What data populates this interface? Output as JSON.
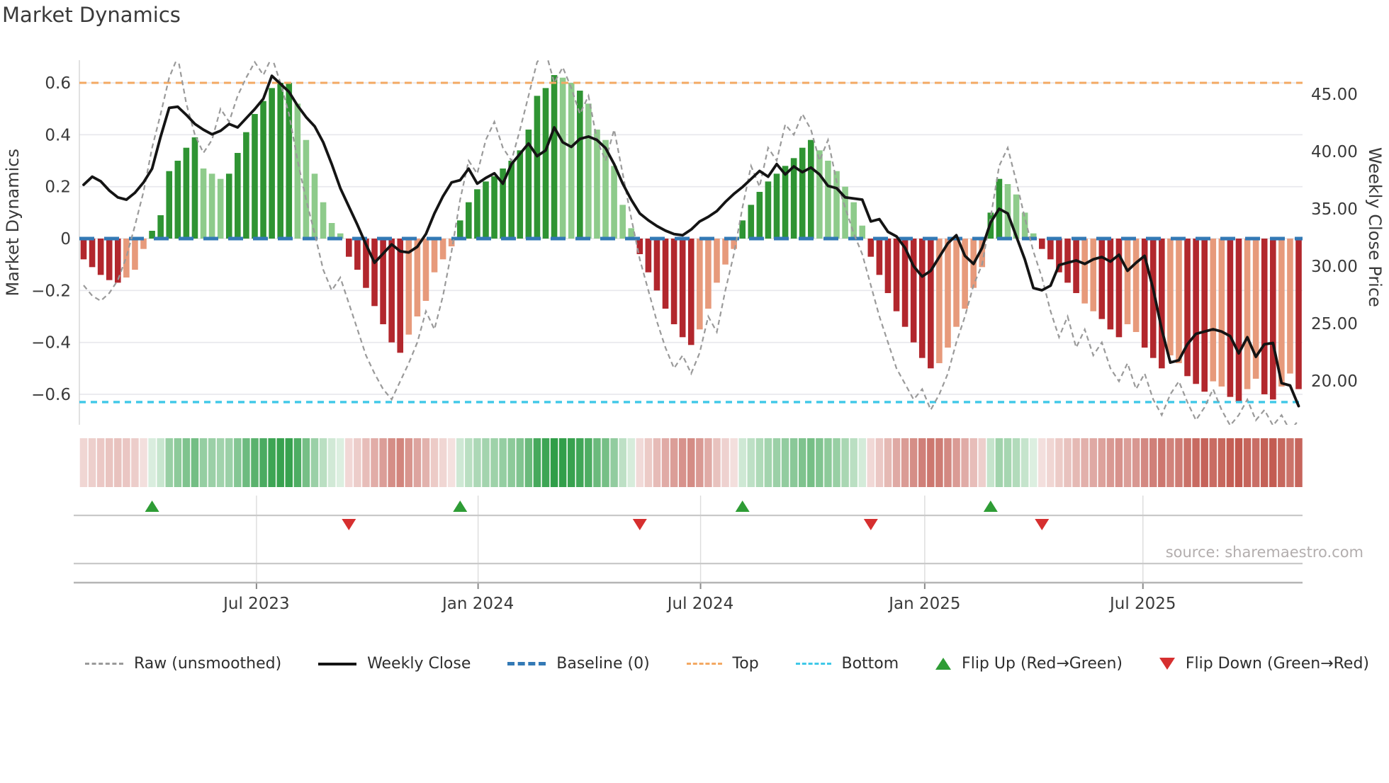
{
  "title": "Market Dynamics",
  "source": "source: sharemaestro.com",
  "left_axis": {
    "label": "Market Dynamics",
    "tick_values": [
      0.6,
      0.4,
      0.2,
      0,
      -0.2,
      -0.4,
      -0.6
    ],
    "tick_labels": [
      "0.6",
      "0.4",
      "0.2",
      "0",
      "−0.2",
      "−0.4",
      "−0.6"
    ]
  },
  "right_axis": {
    "label": "Weekly Close Price",
    "tick_values": [
      45,
      40,
      35,
      30,
      25,
      20
    ],
    "tick_labels": [
      "45.00",
      "40.00",
      "35.00",
      "30.00",
      "25.00",
      "20.00"
    ]
  },
  "legend": {
    "items": [
      {
        "label": "Raw (unsmoothed)"
      },
      {
        "label": "Weekly Close"
      },
      {
        "label": "Baseline (0)"
      },
      {
        "label": "Top"
      },
      {
        "label": "Bottom"
      },
      {
        "label": "Flip Up (Red→Green)"
      },
      {
        "label": "Flip Down (Green→Red)"
      }
    ]
  },
  "colors": {
    "bar_dark_green": "#2f9433",
    "bar_light_green": "#8ecb8b",
    "bar_dark_red": "#b2272d",
    "bar_light_red": "#e79a7b",
    "top_line": "#f3a963",
    "bottom_line": "#3fc8e8",
    "baseline": "#3379b5",
    "raw_line": "#9a9a9a",
    "close_line": "#141414",
    "heat_green": "#2f9e48",
    "heat_red": "#c25a50",
    "flip_up": "#2e9c35",
    "flip_down": "#d62f2f",
    "grid": "#e7e7ec",
    "band_line": "#c9c9c9",
    "axis_line": "#b5b5b5",
    "tick_text": "#3a3a3a"
  },
  "chart_data": {
    "type": "bar",
    "title": "Market Dynamics",
    "xlabel": "",
    "ylabel_left": "Market Dynamics",
    "ylabel_right": "Weekly Close Price",
    "x_unit": "week_index",
    "n_weeks": 143,
    "left_ylim": [
      -0.72,
      0.69
    ],
    "right_ylim": [
      16.2,
      48.0
    ],
    "grid": true,
    "legend_position": "bottom",
    "baseline": 0,
    "top_threshold": 0.6,
    "bottom_threshold": -0.63,
    "x_ticks": [
      {
        "label": "Jul 2023",
        "week": 20.2
      },
      {
        "label": "Jan 2024",
        "week": 46.1
      },
      {
        "label": "Jul 2024",
        "week": 72.1
      },
      {
        "label": "Jan 2025",
        "week": 98.3
      },
      {
        "label": "Jul 2025",
        "week": 123.8
      }
    ],
    "flip_up_weeks": [
      8,
      44,
      77,
      106
    ],
    "flip_down_weeks": [
      31,
      65,
      92,
      112
    ],
    "bar_tones": "dddddlllddddddlllddddddddlllllldddddddllllllddddddddddddlldllllllsdddddddlllllsdddddddddllllllsddddddddllllllsddllllsdddddlldddlldddlldddllddllddlld",
    "series": [
      {
        "name": "Market Dynamics (bars)",
        "type": "bar",
        "axis": "left",
        "values": [
          -0.08,
          -0.11,
          -0.14,
          -0.16,
          -0.17,
          -0.15,
          -0.12,
          -0.04,
          0.03,
          0.09,
          0.26,
          0.3,
          0.35,
          0.39,
          0.27,
          0.25,
          0.23,
          0.25,
          0.33,
          0.41,
          0.48,
          0.53,
          0.58,
          0.6,
          0.6,
          0.52,
          0.38,
          0.25,
          0.14,
          0.06,
          0.02,
          -0.07,
          -0.12,
          -0.19,
          -0.26,
          -0.33,
          -0.4,
          -0.44,
          -0.37,
          -0.3,
          -0.24,
          -0.13,
          -0.08,
          -0.03,
          0.07,
          0.14,
          0.19,
          0.22,
          0.24,
          0.27,
          0.3,
          0.34,
          0.42,
          0.55,
          0.58,
          0.63,
          0.62,
          0.6,
          0.57,
          0.52,
          0.42,
          0.38,
          0.28,
          0.13,
          0.04,
          -0.06,
          -0.13,
          -0.2,
          -0.27,
          -0.33,
          -0.38,
          -0.41,
          -0.35,
          -0.27,
          -0.17,
          -0.1,
          -0.04,
          0.07,
          0.13,
          0.18,
          0.22,
          0.25,
          0.28,
          0.31,
          0.35,
          0.38,
          0.34,
          0.3,
          0.26,
          0.2,
          0.14,
          0.05,
          -0.07,
          -0.14,
          -0.21,
          -0.28,
          -0.34,
          -0.4,
          -0.46,
          -0.5,
          -0.48,
          -0.42,
          -0.34,
          -0.27,
          -0.19,
          -0.11,
          0.1,
          0.23,
          0.21,
          0.17,
          0.1,
          0.02,
          -0.04,
          -0.08,
          -0.13,
          -0.17,
          -0.21,
          -0.25,
          -0.28,
          -0.31,
          -0.35,
          -0.38,
          -0.33,
          -0.36,
          -0.42,
          -0.46,
          -0.5,
          -0.45,
          -0.48,
          -0.53,
          -0.56,
          -0.59,
          -0.55,
          -0.57,
          -0.61,
          -0.63,
          -0.58,
          -0.54,
          -0.6,
          -0.62,
          -0.57,
          -0.52,
          -0.58
        ]
      },
      {
        "name": "Raw (unsmoothed)",
        "type": "line",
        "style": "dashed",
        "axis": "left",
        "values": [
          -0.18,
          -0.22,
          -0.24,
          -0.21,
          -0.16,
          -0.07,
          0.05,
          0.18,
          0.35,
          0.48,
          0.62,
          0.7,
          0.52,
          0.4,
          0.33,
          0.38,
          0.5,
          0.45,
          0.55,
          0.62,
          0.68,
          0.63,
          0.7,
          0.6,
          0.48,
          0.3,
          0.15,
          0.02,
          -0.12,
          -0.2,
          -0.15,
          -0.25,
          -0.35,
          -0.45,
          -0.52,
          -0.58,
          -0.62,
          -0.55,
          -0.48,
          -0.4,
          -0.28,
          -0.35,
          -0.22,
          -0.05,
          0.15,
          0.3,
          0.25,
          0.38,
          0.45,
          0.35,
          0.3,
          0.42,
          0.55,
          0.68,
          0.72,
          0.6,
          0.66,
          0.58,
          0.48,
          0.55,
          0.38,
          0.3,
          0.42,
          0.25,
          0.08,
          -0.08,
          -0.2,
          -0.32,
          -0.42,
          -0.5,
          -0.45,
          -0.52,
          -0.44,
          -0.3,
          -0.36,
          -0.2,
          -0.06,
          0.12,
          0.28,
          0.2,
          0.35,
          0.3,
          0.44,
          0.4,
          0.48,
          0.42,
          0.3,
          0.38,
          0.22,
          0.12,
          0.02,
          -0.06,
          -0.18,
          -0.3,
          -0.4,
          -0.5,
          -0.56,
          -0.62,
          -0.58,
          -0.66,
          -0.6,
          -0.52,
          -0.4,
          -0.3,
          -0.18,
          -0.1,
          0.08,
          0.28,
          0.35,
          0.22,
          0.08,
          -0.05,
          -0.15,
          -0.28,
          -0.38,
          -0.3,
          -0.42,
          -0.35,
          -0.45,
          -0.4,
          -0.5,
          -0.55,
          -0.48,
          -0.58,
          -0.52,
          -0.62,
          -0.68,
          -0.6,
          -0.55,
          -0.63,
          -0.7,
          -0.65,
          -0.58,
          -0.66,
          -0.72,
          -0.68,
          -0.62,
          -0.7,
          -0.66,
          -0.72,
          -0.68,
          -0.74,
          -0.7
        ]
      },
      {
        "name": "Weekly Close",
        "type": "line",
        "style": "solid",
        "axis": "right",
        "values": [
          37.1,
          37.8,
          37.4,
          36.6,
          36.0,
          35.8,
          36.4,
          37.3,
          38.5,
          41.3,
          43.8,
          43.9,
          43.2,
          42.4,
          41.9,
          41.5,
          41.8,
          42.4,
          42.1,
          42.9,
          43.7,
          44.6,
          46.6,
          45.9,
          45.2,
          44.0,
          43.0,
          42.2,
          40.8,
          38.9,
          36.8,
          35.2,
          33.6,
          31.9,
          30.3,
          31.1,
          31.9,
          31.3,
          31.2,
          31.7,
          32.8,
          34.6,
          36.1,
          37.3,
          37.5,
          38.5,
          37.2,
          37.7,
          38.1,
          37.2,
          38.9,
          39.8,
          40.7,
          39.6,
          40.1,
          42.1,
          40.8,
          40.4,
          41.1,
          41.3,
          41.0,
          40.3,
          38.9,
          37.2,
          35.8,
          34.6,
          34.0,
          33.5,
          33.1,
          32.8,
          32.7,
          33.2,
          33.9,
          34.3,
          34.8,
          35.6,
          36.3,
          36.9,
          37.6,
          38.3,
          37.8,
          38.9,
          38.0,
          38.7,
          38.2,
          38.6,
          38.0,
          37.0,
          36.8,
          36.0,
          35.9,
          35.8,
          33.9,
          34.1,
          33.0,
          32.6,
          31.6,
          30.0,
          29.1,
          29.6,
          30.8,
          32.0,
          32.7,
          30.9,
          30.2,
          31.6,
          33.8,
          35.0,
          34.6,
          32.6,
          30.6,
          28.1,
          27.9,
          28.3,
          30.1,
          30.3,
          30.5,
          30.2,
          30.6,
          30.8,
          30.4,
          31.0,
          29.6,
          30.3,
          30.9,
          28.0,
          24.5,
          21.6,
          21.8,
          23.2,
          24.1,
          24.3,
          24.5,
          24.3,
          23.9,
          22.4,
          23.8,
          22.1,
          23.2,
          23.3,
          19.8,
          19.6,
          17.8
        ]
      }
    ]
  }
}
